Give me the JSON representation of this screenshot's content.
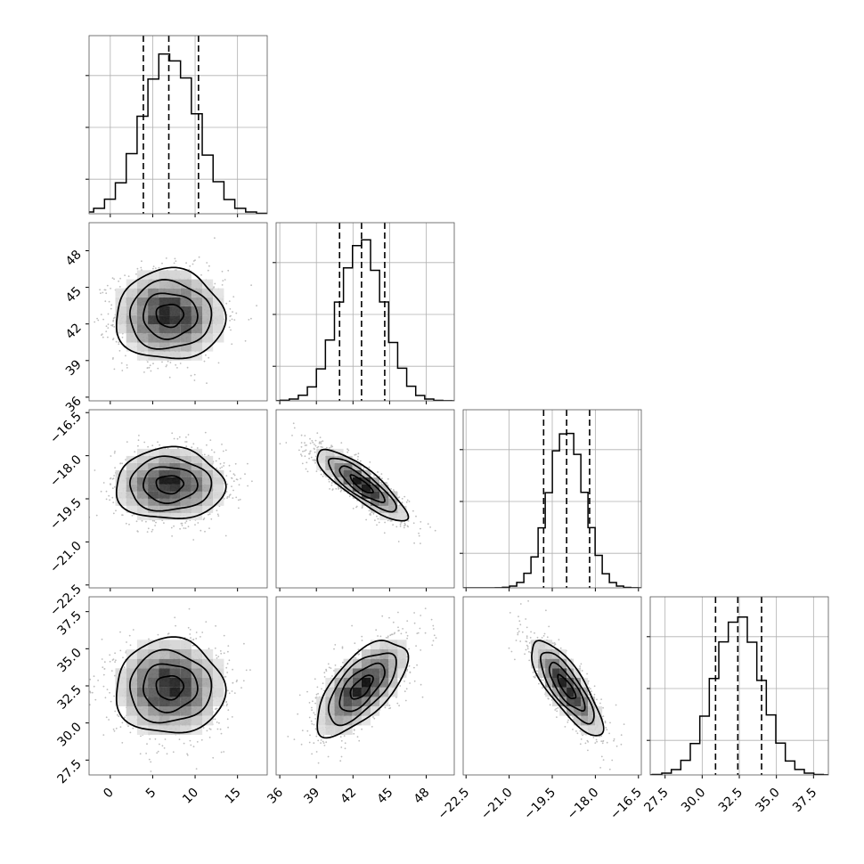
{
  "chart_data": {
    "type": "corner",
    "quantiles": [
      0.16,
      0.5,
      0.84
    ],
    "grid": true,
    "parameters": [
      {
        "mean": 7.0,
        "sd": 3.2,
        "range": [
          -2.5,
          18.5
        ],
        "ticks": [
          0,
          5,
          10,
          15
        ],
        "tick_labels": [
          "0",
          "5",
          "10",
          "15"
        ],
        "quantile_values": [
          3.9,
          6.9,
          10.4
        ]
      },
      {
        "mean": 42.7,
        "sd": 1.85,
        "range": [
          35.7,
          50.3
        ],
        "ticks": [
          36,
          39,
          42,
          45,
          48
        ],
        "tick_labels": [
          "36",
          "39",
          "42",
          "45",
          "48"
        ],
        "quantile_values": [
          40.9,
          42.7,
          44.6
        ]
      },
      {
        "mean": -19.0,
        "sd": 0.62,
        "range": [
          -22.6,
          -16.4
        ],
        "ticks": [
          -22.5,
          -21.0,
          -19.5,
          -18.0,
          -16.5
        ],
        "tick_labels": [
          "−22.5",
          "−21.0",
          "−19.5",
          "−18.0",
          "−16.5"
        ],
        "quantile_values": [
          -19.8,
          -19.0,
          -18.2
        ]
      },
      {
        "mean": 32.4,
        "sd": 1.6,
        "range": [
          26.5,
          38.5
        ],
        "ticks": [
          27.5,
          30.0,
          32.5,
          35.0,
          37.5
        ],
        "tick_labels": [
          "27.5",
          "30.0",
          "32.5",
          "35.0",
          "37.5"
        ],
        "quantile_values": [
          30.9,
          32.4,
          34.0
        ]
      }
    ],
    "correlations": [
      [
        1.0,
        0.0,
        0.0,
        0.0
      ],
      [
        0.0,
        1.0,
        -0.85,
        0.65
      ],
      [
        0.0,
        -0.85,
        1.0,
        -0.8
      ],
      [
        0.0,
        0.65,
        -0.8,
        1.0
      ]
    ],
    "contour_levels_sigma": [
      0.5,
      1.0,
      1.5,
      2.0
    ],
    "scatter_points_per_panel": 1400,
    "histogram_bins": 20
  }
}
